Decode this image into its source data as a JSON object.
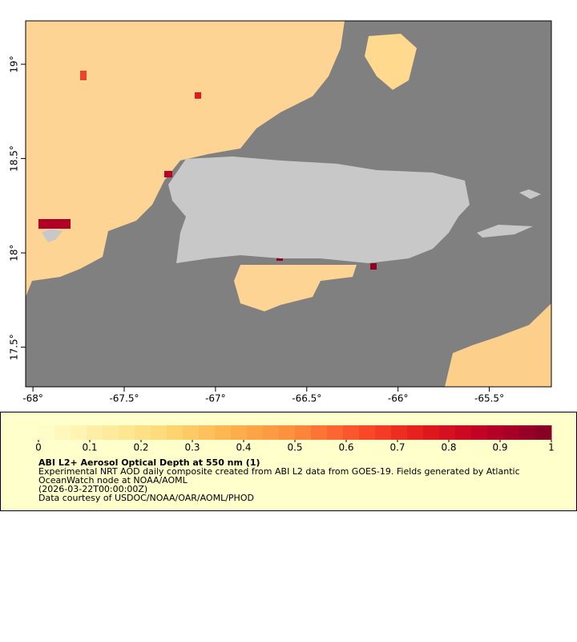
{
  "map": {
    "xlim": [
      -68.04,
      -65.16
    ],
    "ylim": [
      17.29,
      19.23
    ],
    "xticks": [
      {
        "value": -68,
        "label": "-68°"
      },
      {
        "value": -67.5,
        "label": "-67.5°"
      },
      {
        "value": -67,
        "label": "-67°"
      },
      {
        "value": -66.5,
        "label": "-66.5°"
      },
      {
        "value": -66,
        "label": "-66°"
      },
      {
        "value": -65.5,
        "label": "-65.5°"
      }
    ],
    "yticks": [
      {
        "value": 19,
        "label": "19°"
      },
      {
        "value": 18.5,
        "label": "18.5°"
      },
      {
        "value": 18,
        "label": "18°"
      },
      {
        "value": 17.5,
        "label": "17.5°"
      }
    ]
  },
  "colorbar": {
    "lim": [
      0,
      1
    ],
    "ticks": [
      0,
      0.1,
      0.2,
      0.3,
      0.4,
      0.5,
      0.6,
      0.7,
      0.8,
      0.9,
      1
    ],
    "colors": [
      "#ffffcc",
      "#ffeda0",
      "#fed976",
      "#feb24c",
      "#fd8d3c",
      "#fc4e2a",
      "#e31a1c",
      "#bd0026",
      "#800026"
    ]
  },
  "legend": {
    "title": "ABI L2+ Aerosol Optical Depth at 550 nm (1)",
    "lines": [
      "Experimental NRT AOD daily composite created from ABI L2 data from GOES-19. Fields generated by Atlantic",
      "OceanWatch node at NOAA/AOML",
      "(2026-03-22T00:00:00Z)",
      "Data courtesy of USDOC/NOAA/OAR/AOML/PHOD"
    ]
  }
}
